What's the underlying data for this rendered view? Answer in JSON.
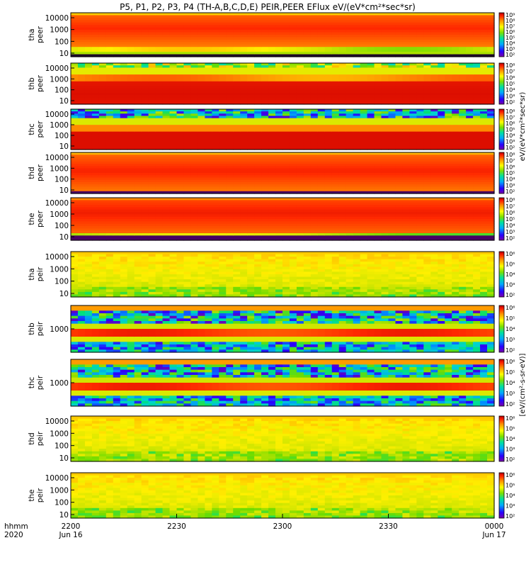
{
  "chart_data": {
    "type": "heatmap",
    "title": "P5, P1, P2, P3, P4 (TH-A,B,C,D,E) PEIR,PEER EFlux eV/(eV*cm²*sec*sr)",
    "x_time_label": "hhmm",
    "x_year_label": "2020",
    "x_ticks": [
      {
        "label": "2200",
        "sub": "Jun 16"
      },
      {
        "label": "2230",
        "sub": ""
      },
      {
        "label": "2300",
        "sub": ""
      },
      {
        "label": "2330",
        "sub": ""
      },
      {
        "label": "0000",
        "sub": "Jun 17"
      }
    ],
    "colorbar_label_peer": "eV/(eV*cm²*sec*sr)",
    "colorbar_label_peir": "[eV/(cm²-s-sr-eV)]",
    "panels": [
      {
        "probe": "tha",
        "species": "peer",
        "yticks": [
          "10",
          "100",
          "1000",
          "10000"
        ],
        "cticks": [
          "10²",
          "10³",
          "10⁴",
          "10⁵",
          "10⁶",
          "10⁷",
          "10⁸",
          "10⁹"
        ]
      },
      {
        "probe": "thb",
        "species": "peer",
        "yticks": [
          "10",
          "100",
          "1000",
          "10000"
        ],
        "cticks": [
          "10²",
          "10³",
          "10⁴",
          "10⁵",
          "10⁶",
          "10⁷",
          "10⁸"
        ]
      },
      {
        "probe": "thc",
        "species": "peer",
        "yticks": [
          "10",
          "100",
          "1000",
          "10000"
        ],
        "cticks": [
          "10²",
          "10³",
          "10⁴",
          "10⁵",
          "10⁶",
          "10⁷",
          "10⁸"
        ]
      },
      {
        "probe": "thd",
        "species": "peer",
        "yticks": [
          "10",
          "100",
          "1000",
          "10000"
        ],
        "cticks": [
          "10²",
          "10³",
          "10⁴",
          "10⁵",
          "10⁶",
          "10⁷",
          "10⁸"
        ]
      },
      {
        "probe": "the",
        "species": "peer",
        "yticks": [
          "10",
          "100",
          "1000",
          "10000"
        ],
        "cticks": [
          "10²",
          "10³",
          "10⁴",
          "10⁵",
          "10⁶",
          "10⁷",
          "10⁸"
        ]
      },
      {
        "probe": "tha",
        "species": "peir",
        "yticks": [
          "10",
          "100",
          "1000",
          "10000"
        ],
        "cticks": [
          "10²",
          "10³",
          "10⁴",
          "10⁵",
          "10⁶"
        ]
      },
      {
        "probe": "thb",
        "species": "peir",
        "yticks": [
          "1000"
        ],
        "cticks": [
          "10²",
          "10³",
          "10⁴",
          "10⁵",
          "10⁶"
        ]
      },
      {
        "probe": "thc",
        "species": "peir",
        "yticks": [
          "1000"
        ],
        "cticks": [
          "10²",
          "10³",
          "10⁴",
          "10⁵",
          "10⁶"
        ]
      },
      {
        "probe": "thd",
        "species": "peir",
        "yticks": [
          "10",
          "100",
          "1000",
          "10000"
        ],
        "cticks": [
          "10²",
          "10³",
          "10⁴",
          "10⁵",
          "10⁶"
        ]
      },
      {
        "probe": "the",
        "species": "peir",
        "yticks": [
          "10",
          "100",
          "1000",
          "10000"
        ],
        "cticks": [
          "10²",
          "10³",
          "10⁴",
          "10⁵",
          "10⁶"
        ]
      }
    ]
  }
}
